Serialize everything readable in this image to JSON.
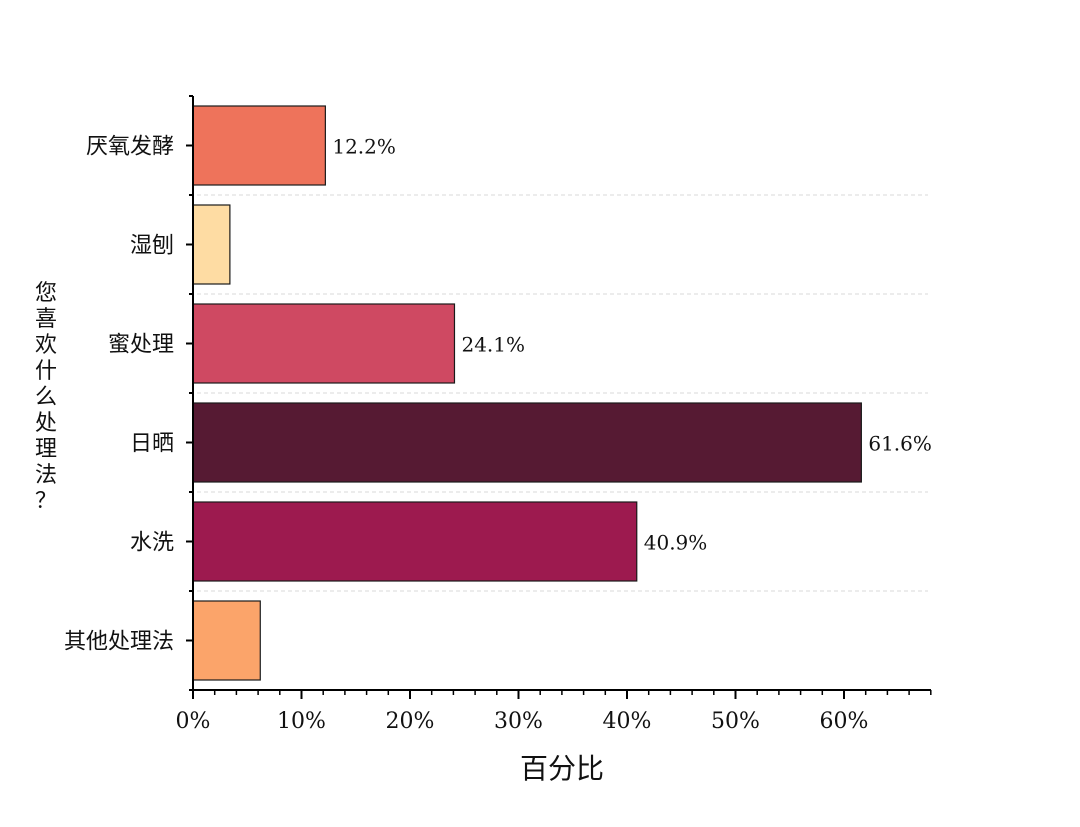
{
  "chart_data": {
    "type": "bar",
    "orientation": "horizontal",
    "categories": [
      "厌氧发酵",
      "湿刨",
      "蜜处理",
      "日晒",
      "水洗",
      "其他处理法"
    ],
    "values": [
      12.2,
      3.4,
      24.1,
      61.6,
      40.9,
      6.2
    ],
    "value_labels": [
      "12.2%",
      "",
      "24.1%",
      "61.6%",
      "40.9%",
      ""
    ],
    "colors": [
      "#ee735b",
      "#fedca3",
      "#cf4962",
      "#561a33",
      "#9d1a4f",
      "#fba46a"
    ],
    "xlabel": "百分比",
    "ylabel": "您喜欢什么处理法？",
    "xlim": [
      0,
      68
    ],
    "xticks": [
      0,
      10,
      20,
      30,
      40,
      50,
      60
    ],
    "xtick_labels": [
      "0%",
      "10%",
      "20%",
      "30%",
      "40%",
      "50%",
      "60%"
    ],
    "grid": "horizontal-dashed",
    "legend": "none"
  }
}
